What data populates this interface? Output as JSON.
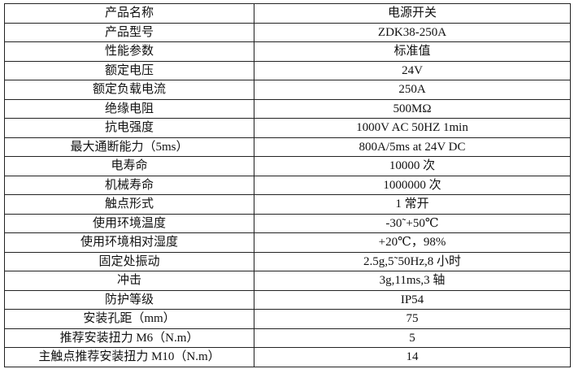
{
  "spec_table": {
    "rows": [
      {
        "label": "产品名称",
        "value": "电源开关"
      },
      {
        "label": "产品型号",
        "value": "ZDK38-250A"
      },
      {
        "label": "性能参数",
        "value": "标准值"
      },
      {
        "label": "额定电压",
        "value": "24V"
      },
      {
        "label": "额定负载电流",
        "value": "250A"
      },
      {
        "label": "绝缘电阻",
        "value": "500MΩ"
      },
      {
        "label": "抗电强度",
        "value": "1000V AC 50HZ 1min"
      },
      {
        "label": "最大通断能力（5ms）",
        "value": "800A/5ms at 24V DC"
      },
      {
        "label": "电寿命",
        "value": "10000 次"
      },
      {
        "label": "机械寿命",
        "value": "1000000 次"
      },
      {
        "label": "触点形式",
        "value": "1 常开"
      },
      {
        "label": "使用环境温度",
        "value": "-30˜+50℃"
      },
      {
        "label": "使用环境相对湿度",
        "value": "+20℃，98%"
      },
      {
        "label": "固定处振动",
        "value": "2.5g,5˜50Hz,8 小时"
      },
      {
        "label": "冲击",
        "value": "3g,11ms,3 轴"
      },
      {
        "label": "防护等级",
        "value": "IP54"
      },
      {
        "label": "安装孔距（mm）",
        "value": "75"
      },
      {
        "label": "推荐安装扭力 M6（N.m）",
        "value": "5"
      },
      {
        "label": "主触点推荐安装扭力 M10（N.m）",
        "value": "14"
      }
    ]
  }
}
